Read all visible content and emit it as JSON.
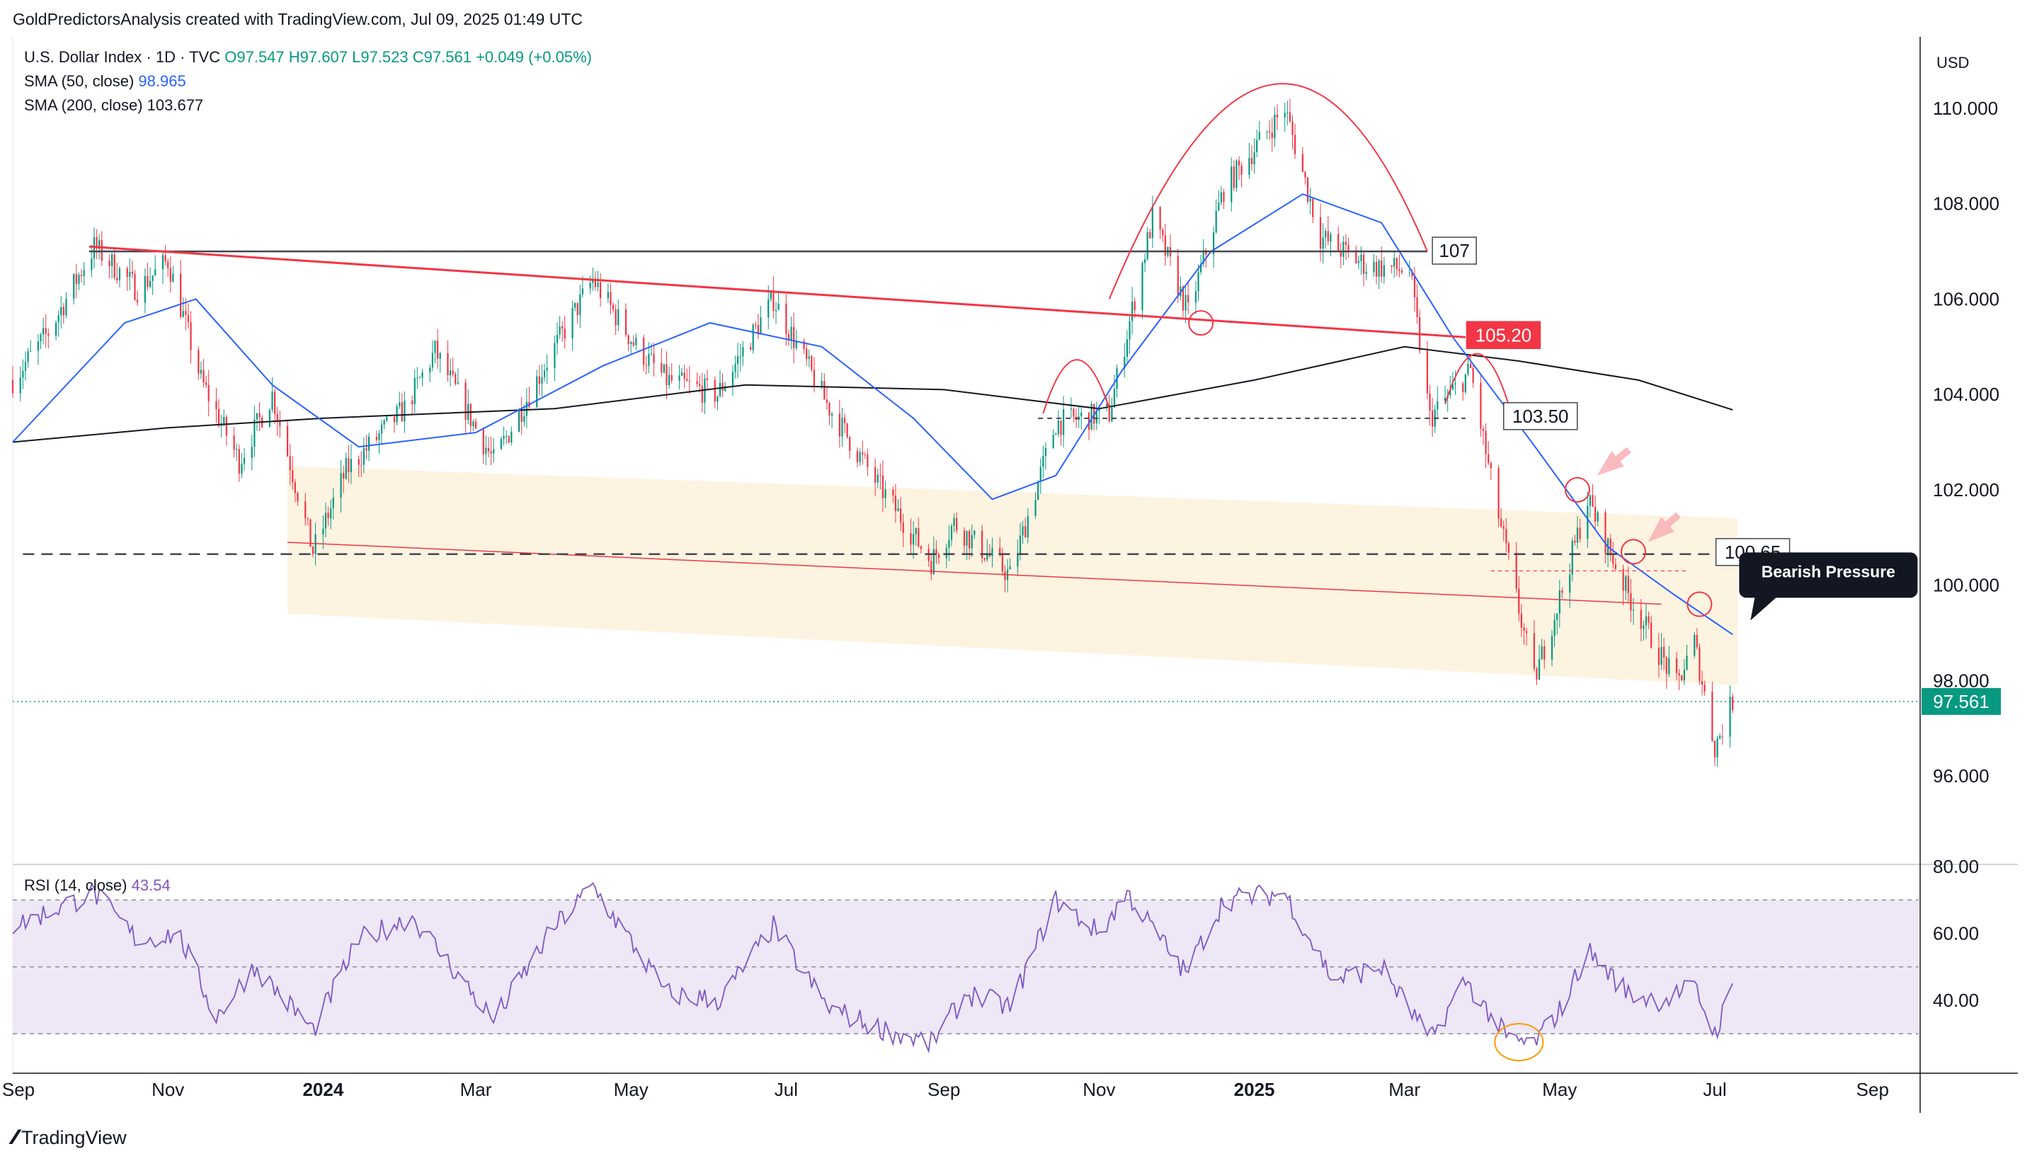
{
  "header": {
    "text": "GoldPredictorsAnalysis created with TradingView.com, Jul 09, 2025 01:49 UTC"
  },
  "legend": {
    "symbol": "U.S. Dollar Index · 1D · TVC",
    "o": "O97.547",
    "h": "H97.607",
    "l": "L97.523",
    "c": "C97.561",
    "change": "+0.049 (+0.05%)",
    "sma50_label": "SMA (50, close)",
    "sma50_value": "98.965",
    "sma200_label": "SMA (200, close)",
    "sma200_value": "103.677",
    "rsi_label": "RSI (14, close)",
    "rsi_value": "43.54"
  },
  "currency": "USD",
  "last_price_label": "97.561",
  "footer": {
    "brand": "TradingView"
  },
  "colors": {
    "up": "#089981",
    "down": "#f23645",
    "sma50": "#2962ff",
    "sma200": "#131722",
    "rsi": "#7e57c2",
    "rsi_band": "#ede7f6",
    "channel": "#fdf3e1",
    "trend_red": "#f23645",
    "label_red": "#f23645"
  },
  "chart_data": [
    {
      "type": "candlestick",
      "title": "U.S. Dollar Index · 1D · TVC",
      "price_axis": {
        "currency": "USD",
        "ticks": [
          "96.000",
          "98.000",
          "100.000",
          "102.000",
          "104.000",
          "106.000",
          "108.000",
          "110.000"
        ],
        "range": [
          94.5,
          111.5
        ]
      },
      "time_axis": {
        "ticks": [
          "Sep",
          "Nov",
          "2024",
          "Mar",
          "May",
          "Jul",
          "Sep",
          "Nov",
          "2025",
          "Mar",
          "May",
          "Jul",
          "Sep"
        ]
      },
      "price_path": [
        [
          "2023-09-01",
          104.3
        ],
        [
          "2023-09-15",
          105.3
        ],
        [
          "2023-10-03",
          107.1
        ],
        [
          "2023-10-20",
          106.2
        ],
        [
          "2023-11-01",
          106.8
        ],
        [
          "2023-11-14",
          104.3
        ],
        [
          "2023-11-29",
          102.6
        ],
        [
          "2023-12-12",
          104.0
        ],
        [
          "2023-12-28",
          100.7
        ],
        [
          "2024-01-10",
          102.4
        ],
        [
          "2024-02-02",
          103.7
        ],
        [
          "2024-02-14",
          104.9
        ],
        [
          "2024-03-08",
          102.6
        ],
        [
          "2024-03-28",
          104.6
        ],
        [
          "2024-04-16",
          106.4
        ],
        [
          "2024-05-03",
          105.0
        ],
        [
          "2024-05-15",
          104.3
        ],
        [
          "2024-06-04",
          104.0
        ],
        [
          "2024-06-26",
          106.0
        ],
        [
          "2024-07-17",
          103.8
        ],
        [
          "2024-08-05",
          102.2
        ],
        [
          "2024-08-27",
          100.5
        ],
        [
          "2024-09-05",
          101.3
        ],
        [
          "2024-09-27",
          100.2
        ],
        [
          "2024-10-15",
          103.4
        ],
        [
          "2024-11-05",
          103.6
        ],
        [
          "2024-11-22",
          107.7
        ],
        [
          "2024-12-06",
          105.7
        ],
        [
          "2024-12-20",
          108.3
        ],
        [
          "2025-01-13",
          110.0
        ],
        [
          "2025-01-27",
          107.3
        ],
        [
          "2025-02-14",
          106.7
        ],
        [
          "2025-03-03",
          106.6
        ],
        [
          "2025-03-11",
          103.5
        ],
        [
          "2025-03-27",
          104.5
        ],
        [
          "2025-04-04",
          102.2
        ],
        [
          "2025-04-21",
          98.0
        ],
        [
          "2025-05-02",
          99.9
        ],
        [
          "2025-05-12",
          101.8
        ],
        [
          "2025-05-28",
          99.8
        ],
        [
          "2025-06-06",
          98.9
        ],
        [
          "2025-06-16",
          97.9
        ],
        [
          "2025-06-23",
          98.8
        ],
        [
          "2025-07-01",
          96.6
        ],
        [
          "2025-07-08",
          97.561
        ]
      ],
      "sma50_path": [
        [
          "2023-09-01",
          103.0
        ],
        [
          "2023-10-15",
          105.5
        ],
        [
          "2023-11-12",
          106.0
        ],
        [
          "2023-12-12",
          104.2
        ],
        [
          "2024-01-15",
          102.9
        ],
        [
          "2024-03-01",
          103.2
        ],
        [
          "2024-04-20",
          104.6
        ],
        [
          "2024-06-01",
          105.5
        ],
        [
          "2024-07-15",
          105.0
        ],
        [
          "2024-08-20",
          103.5
        ],
        [
          "2024-09-20",
          101.8
        ],
        [
          "2024-10-15",
          102.3
        ],
        [
          "2024-11-10",
          104.5
        ],
        [
          "2024-12-15",
          107.0
        ],
        [
          "2025-01-20",
          108.2
        ],
        [
          "2025-02-20",
          107.6
        ],
        [
          "2025-03-20",
          105.2
        ],
        [
          "2025-04-20",
          103.0
        ],
        [
          "2025-05-20",
          100.8
        ],
        [
          "2025-06-15",
          99.8
        ],
        [
          "2025-07-08",
          98.965
        ]
      ],
      "sma200_path": [
        [
          "2023-09-01",
          103.0
        ],
        [
          "2023-11-01",
          103.3
        ],
        [
          "2024-01-01",
          103.5
        ],
        [
          "2024-04-01",
          103.7
        ],
        [
          "2024-06-15",
          104.2
        ],
        [
          "2024-09-01",
          104.1
        ],
        [
          "2024-11-01",
          103.7
        ],
        [
          "2025-01-01",
          104.3
        ],
        [
          "2025-03-01",
          105.0
        ],
        [
          "2025-04-15",
          104.7
        ],
        [
          "2025-06-01",
          104.3
        ],
        [
          "2025-07-08",
          103.677
        ]
      ],
      "annotations": {
        "horizontal_levels": [
          107,
          103.5,
          100.65
        ],
        "level_labels": [
          "107",
          "105.20",
          "103.50",
          "100.65"
        ],
        "callout": "Bearish Pressure"
      },
      "sma50_last": 98.965,
      "sma200_last": 103.677,
      "last_price": 97.561
    },
    {
      "type": "line",
      "title": "RSI (14, close)",
      "y_axis": {
        "ticks": [
          "40.00",
          "60.00",
          "80.00"
        ],
        "range": [
          20,
          82
        ]
      },
      "bands": {
        "upper": 70,
        "middle": 50,
        "lower": 30
      },
      "rsi_path": [
        [
          "2023-09-01",
          62
        ],
        [
          "2023-09-20",
          68
        ],
        [
          "2023-10-03",
          72
        ],
        [
          "2023-10-20",
          58
        ],
        [
          "2023-11-05",
          60
        ],
        [
          "2023-11-20",
          35
        ],
        [
          "2023-12-05",
          50
        ],
        [
          "2023-12-28",
          31
        ],
        [
          "2024-01-15",
          58
        ],
        [
          "2024-02-05",
          65
        ],
        [
          "2024-03-08",
          34
        ],
        [
          "2024-04-01",
          62
        ],
        [
          "2024-04-16",
          74
        ],
        [
          "2024-05-15",
          42
        ],
        [
          "2024-06-05",
          40
        ],
        [
          "2024-06-26",
          62
        ],
        [
          "2024-07-17",
          38
        ],
        [
          "2024-08-05",
          32
        ],
        [
          "2024-08-27",
          27
        ],
        [
          "2024-09-10",
          42
        ],
        [
          "2024-09-27",
          38
        ],
        [
          "2024-10-15",
          70
        ],
        [
          "2024-11-01",
          60
        ],
        [
          "2024-11-12",
          72
        ],
        [
          "2024-12-05",
          48
        ],
        [
          "2024-12-20",
          70
        ],
        [
          "2025-01-13",
          72
        ],
        [
          "2025-02-01",
          46
        ],
        [
          "2025-02-20",
          50
        ],
        [
          "2025-03-11",
          28
        ],
        [
          "2025-03-25",
          46
        ],
        [
          "2025-04-11",
          28
        ],
        [
          "2025-04-21",
          27
        ],
        [
          "2025-05-02",
          38
        ],
        [
          "2025-05-12",
          55
        ],
        [
          "2025-05-28",
          42
        ],
        [
          "2025-06-10",
          40
        ],
        [
          "2025-06-23",
          44
        ],
        [
          "2025-07-01",
          30
        ],
        [
          "2025-07-08",
          43.54
        ]
      ],
      "last_value": 43.54
    }
  ]
}
